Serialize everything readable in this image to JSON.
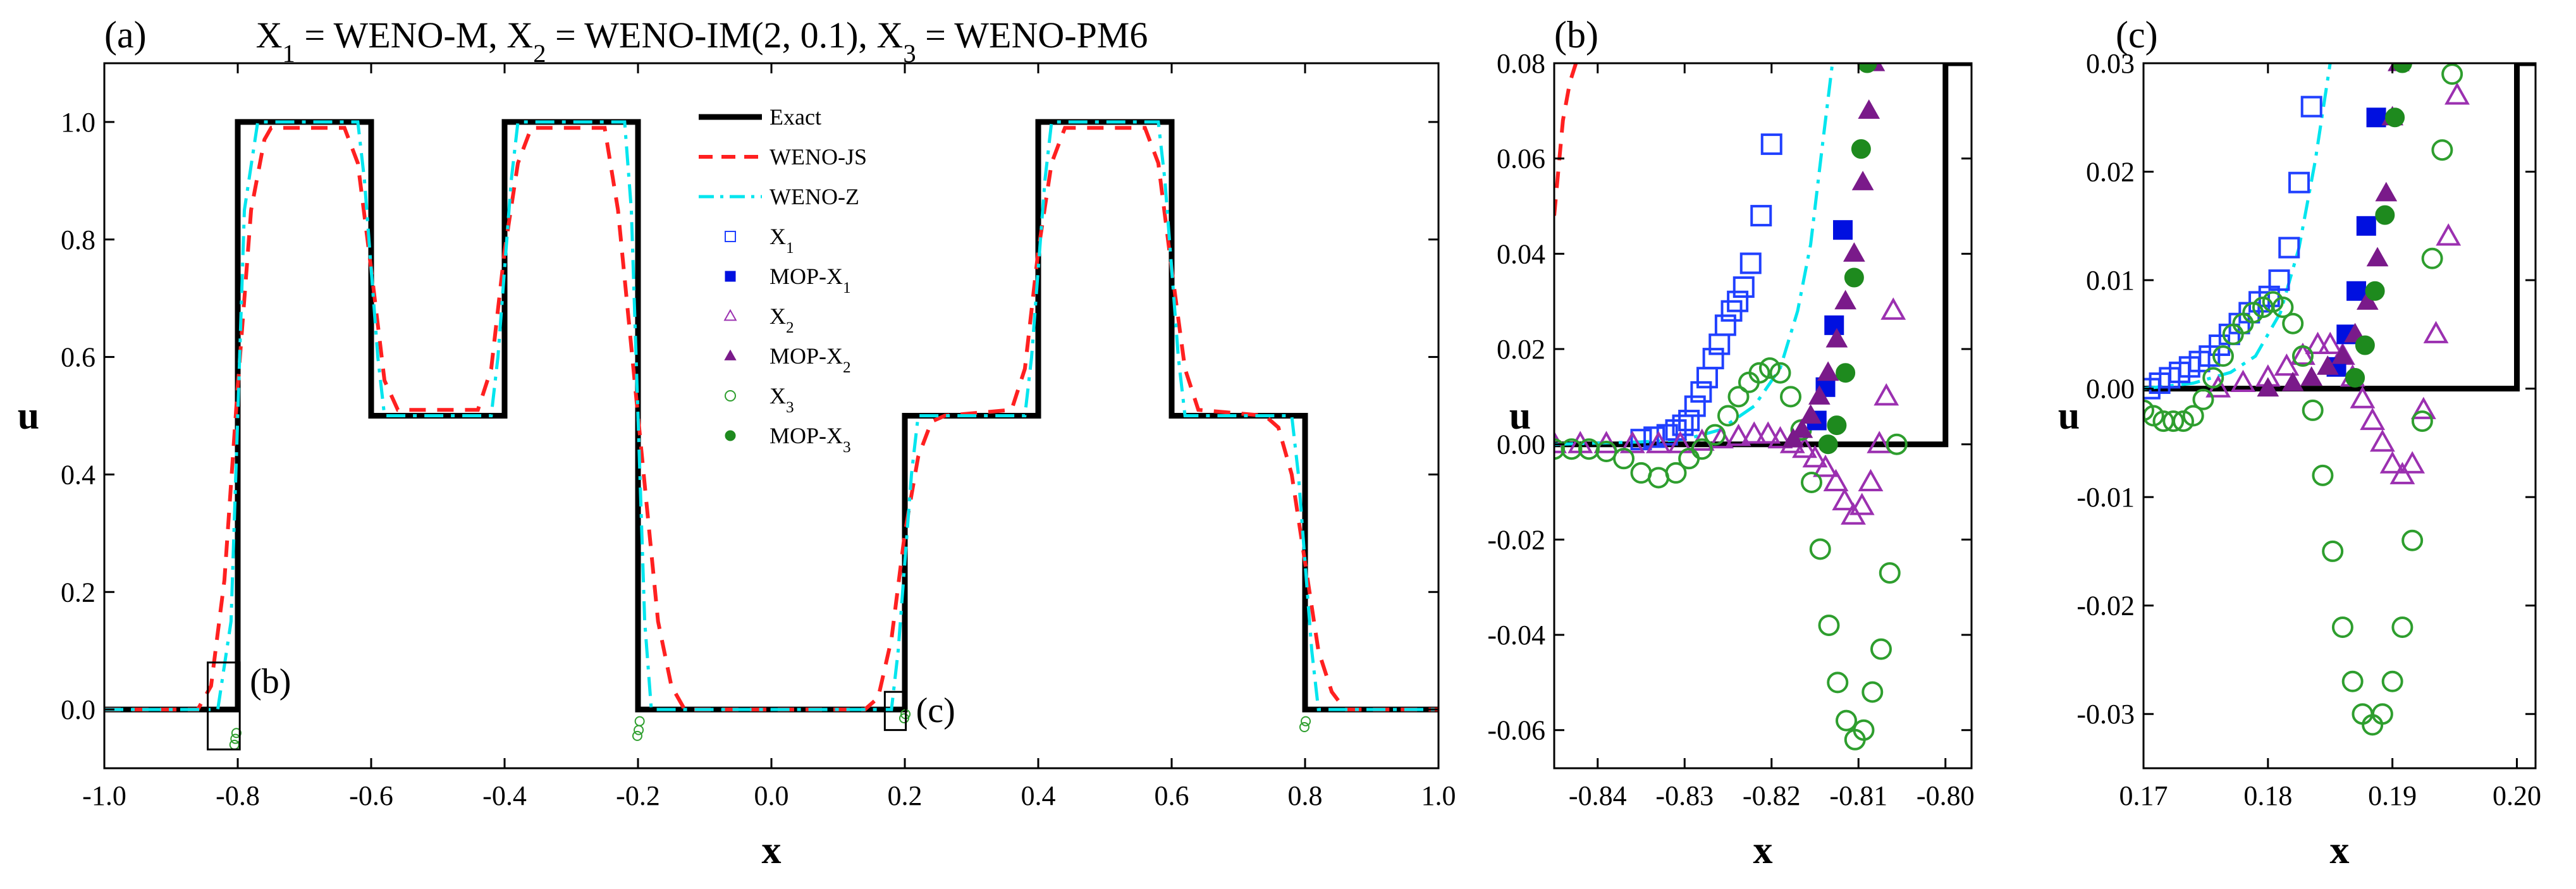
{
  "figure": {
    "title_parts": [
      "X",
      "1",
      " = WENO-M, X",
      "2",
      " = WENO-IM(2, 0.1), X",
      "3",
      " = WENO-PM6"
    ],
    "colors": {
      "exact": "#000000",
      "weno_js": "#ff2020",
      "weno_z": "#00e5ee",
      "x1": "#2040ff",
      "mop_x1": "#0010e0",
      "x2": "#9b30b0",
      "mop_x2": "#7a1a8a",
      "x3": "#2e9e2e",
      "mop_x3": "#1e8a1e"
    },
    "legend": {
      "exact": "Exact",
      "weno_js": "WENO-JS",
      "weno_z": "WENO-Z",
      "x1": [
        "X",
        "1"
      ],
      "mop_x1": [
        "MOP-X",
        "1"
      ],
      "x2": [
        "X",
        "2"
      ],
      "mop_x2": [
        "MOP-X",
        "2"
      ],
      "x3": [
        "X",
        "3"
      ],
      "mop_x3": [
        "MOP-X",
        "3"
      ]
    },
    "zoom_boxes": {
      "b": {
        "label": "(b)",
        "xlim": [
          -0.845,
          -0.797
        ],
        "ylim": [
          -0.068,
          0.08
        ]
      },
      "c": {
        "label": "(c)",
        "xlim": [
          0.17,
          0.2015
        ],
        "ylim": [
          -0.035,
          0.03
        ]
      }
    }
  },
  "chart_data": [
    {
      "type": "line",
      "panel": "(a)",
      "xlabel": "x",
      "ylabel": "u",
      "xlim": [
        -1.0,
        1.0
      ],
      "ylim": [
        -0.1,
        1.1
      ],
      "xticks": [
        -1.0,
        -0.8,
        -0.6,
        -0.4,
        -0.2,
        0.0,
        0.2,
        0.4,
        0.6,
        0.8,
        1.0
      ],
      "xtick_labels": [
        "-1.0",
        "-0.8",
        "-0.6",
        "-0.4",
        "-0.2",
        "0.0",
        "0.2",
        "0.4",
        "0.6",
        "0.8",
        "1.0"
      ],
      "yticks": [
        0.0,
        0.2,
        0.4,
        0.6,
        0.8,
        1.0
      ],
      "ytick_labels": [
        "0.0",
        "0.2",
        "0.4",
        "0.6",
        "0.8",
        "1.0"
      ],
      "legend_position": "top-center",
      "series": [
        {
          "name": "Exact",
          "style": "solid",
          "x": [
            -1.0,
            -0.8,
            -0.8,
            -0.6,
            -0.6,
            -0.4,
            -0.4,
            -0.2,
            -0.2,
            0.2,
            0.2,
            0.4,
            0.4,
            0.6,
            0.6,
            0.8,
            0.8,
            1.0
          ],
          "y": [
            0.0,
            0.0,
            1.0,
            1.0,
            0.5,
            0.5,
            1.0,
            1.0,
            0.0,
            0.0,
            0.5,
            0.5,
            1.0,
            1.0,
            0.5,
            0.5,
            0.0,
            0.0
          ]
        },
        {
          "name": "WENO-JS",
          "style": "dashed",
          "x": [
            -1.0,
            -0.86,
            -0.84,
            -0.82,
            -0.8,
            -0.78,
            -0.76,
            -0.75,
            -0.64,
            -0.62,
            -0.6,
            -0.58,
            -0.56,
            -0.44,
            -0.42,
            -0.4,
            -0.38,
            -0.36,
            -0.25,
            -0.23,
            -0.2,
            -0.17,
            -0.15,
            -0.13,
            0.14,
            0.16,
            0.18,
            0.2,
            0.22,
            0.24,
            0.26,
            0.36,
            0.38,
            0.4,
            0.42,
            0.44,
            0.56,
            0.58,
            0.6,
            0.62,
            0.64,
            0.74,
            0.76,
            0.78,
            0.8,
            0.82,
            0.84,
            0.86,
            1.0
          ],
          "y": [
            0.0,
            0.0,
            0.04,
            0.22,
            0.55,
            0.85,
            0.97,
            0.99,
            0.99,
            0.93,
            0.75,
            0.56,
            0.51,
            0.51,
            0.58,
            0.78,
            0.93,
            0.99,
            0.99,
            0.85,
            0.5,
            0.15,
            0.04,
            0.0,
            0.0,
            0.02,
            0.12,
            0.3,
            0.43,
            0.49,
            0.5,
            0.51,
            0.58,
            0.78,
            0.93,
            0.99,
            0.99,
            0.93,
            0.75,
            0.58,
            0.51,
            0.5,
            0.48,
            0.4,
            0.25,
            0.1,
            0.03,
            0.0,
            0.0
          ]
        },
        {
          "name": "WENO-Z",
          "style": "dashdot",
          "x": [
            -1.0,
            -0.83,
            -0.81,
            -0.8,
            -0.79,
            -0.77,
            -0.62,
            -0.61,
            -0.6,
            -0.59,
            -0.58,
            -0.42,
            -0.41,
            -0.4,
            -0.39,
            -0.38,
            -0.22,
            -0.21,
            -0.2,
            -0.19,
            -0.18,
            0.18,
            0.19,
            0.2,
            0.21,
            0.22,
            0.38,
            0.39,
            0.4,
            0.41,
            0.42,
            0.58,
            0.59,
            0.6,
            0.61,
            0.62,
            0.78,
            0.79,
            0.8,
            0.81,
            0.82,
            1.0
          ],
          "y": [
            0.0,
            0.0,
            0.15,
            0.5,
            0.85,
            1.0,
            1.0,
            0.9,
            0.75,
            0.6,
            0.5,
            0.5,
            0.6,
            0.75,
            0.9,
            1.0,
            1.0,
            0.85,
            0.5,
            0.15,
            0.0,
            0.0,
            0.1,
            0.25,
            0.4,
            0.5,
            0.5,
            0.6,
            0.75,
            0.9,
            1.0,
            1.0,
            0.9,
            0.75,
            0.6,
            0.5,
            0.5,
            0.4,
            0.25,
            0.1,
            0.0,
            0.0
          ]
        },
        {
          "name": "X1",
          "style": "open-square",
          "x": [],
          "y": []
        },
        {
          "name": "MOP-X1",
          "style": "filled-square",
          "x": [],
          "y": []
        },
        {
          "name": "X2",
          "style": "open-triangle",
          "x": [],
          "y": []
        },
        {
          "name": "MOP-X2",
          "style": "filled-triangle",
          "x": [],
          "y": []
        },
        {
          "name": "X3",
          "style": "open-circle",
          "x": [
            -0.805,
            -0.8035,
            -0.802,
            -0.201,
            -0.199,
            -0.1975,
            0.199,
            0.201,
            0.799,
            0.801
          ],
          "y": [
            -0.06,
            -0.05,
            -0.04,
            -0.045,
            -0.035,
            -0.02,
            -0.015,
            -0.008,
            -0.03,
            -0.02
          ]
        },
        {
          "name": "MOP-X3",
          "style": "filled-circle",
          "x": [],
          "y": []
        }
      ]
    },
    {
      "type": "scatter",
      "panel": "(b)",
      "xlabel": "x",
      "ylabel": "u",
      "xlim": [
        -0.845,
        -0.797
      ],
      "ylim": [
        -0.068,
        0.08
      ],
      "xticks": [
        -0.84,
        -0.83,
        -0.82,
        -0.81,
        -0.8
      ],
      "xtick_labels": [
        "-0.84",
        "-0.83",
        "-0.82",
        "-0.81",
        "-0.80"
      ],
      "yticks": [
        -0.06,
        -0.04,
        -0.02,
        0.0,
        0.02,
        0.04,
        0.06,
        0.08
      ],
      "ytick_labels": [
        "-0.06",
        "-0.04",
        "-0.02",
        "0.00",
        "0.02",
        "0.04",
        "0.06",
        "0.08"
      ],
      "series": [
        {
          "name": "Exact",
          "style": "solid",
          "x": [
            -0.845,
            -0.8,
            -0.8,
            -0.797
          ],
          "y": [
            0.0,
            0.0,
            0.08,
            0.08
          ]
        },
        {
          "name": "WENO-JS",
          "style": "dashed",
          "x": [
            -0.845,
            -0.8445,
            -0.844,
            -0.8432,
            -0.8425
          ],
          "y": [
            0.048,
            0.058,
            0.068,
            0.076,
            0.08
          ]
        },
        {
          "name": "WENO-Z",
          "style": "dashdot",
          "x": [
            -0.845,
            -0.835,
            -0.83,
            -0.826,
            -0.822,
            -0.819,
            -0.817,
            -0.8155,
            -0.8142,
            -0.813
          ],
          "y": [
            0.0,
            0.0005,
            0.001,
            0.003,
            0.008,
            0.016,
            0.028,
            0.042,
            0.062,
            0.08
          ]
        },
        {
          "name": "X1",
          "style": "open-square",
          "x": [
            -0.835,
            -0.8335,
            -0.832,
            -0.831,
            -0.8302,
            -0.8295,
            -0.8288,
            -0.8281,
            -0.8274,
            -0.8267,
            -0.826,
            -0.8253,
            -0.8246,
            -0.8239,
            -0.8232,
            -0.8224,
            -0.8212,
            -0.82
          ],
          "y": [
            0.001,
            0.0015,
            0.002,
            0.003,
            0.004,
            0.005,
            0.008,
            0.011,
            0.014,
            0.018,
            0.021,
            0.025,
            0.028,
            0.03,
            0.033,
            0.038,
            0.048,
            0.063
          ]
        },
        {
          "name": "MOP-X1",
          "style": "filled-square",
          "x": [
            -0.8148,
            -0.8138,
            -0.8128,
            -0.8118
          ],
          "y": [
            0.005,
            0.012,
            0.025,
            0.045
          ]
        },
        {
          "name": "X2",
          "style": "open-triangle",
          "x": [
            -0.845,
            -0.842,
            -0.839,
            -0.836,
            -0.833,
            -0.8305,
            -0.828,
            -0.8258,
            -0.8238,
            -0.822,
            -0.8204,
            -0.819,
            -0.8176,
            -0.8162,
            -0.815,
            -0.8138,
            -0.8126,
            -0.8116,
            -0.8106,
            -0.8096,
            -0.8086,
            -0.8076,
            -0.8068,
            -0.806
          ],
          "y": [
            0.0,
            0.0,
            0.0,
            0.0,
            0.0,
            0.0,
            0.0005,
            0.001,
            0.0015,
            0.002,
            0.002,
            0.001,
            0.0,
            -0.001,
            -0.003,
            -0.005,
            -0.008,
            -0.012,
            -0.015,
            -0.013,
            -0.008,
            0.0,
            0.01,
            0.028
          ]
        },
        {
          "name": "MOP-X2",
          "style": "filled-triangle",
          "x": [
            -0.8175,
            -0.8165,
            -0.8155,
            -0.8145,
            -0.8135,
            -0.8125,
            -0.8115,
            -0.8105,
            -0.8095,
            -0.8088,
            -0.8082
          ],
          "y": [
            0.001,
            0.003,
            0.006,
            0.01,
            0.015,
            0.022,
            0.03,
            0.04,
            0.055,
            0.07,
            0.08
          ]
        },
        {
          "name": "X3",
          "style": "open-circle",
          "x": [
            -0.845,
            -0.843,
            -0.841,
            -0.839,
            -0.837,
            -0.835,
            -0.833,
            -0.831,
            -0.8295,
            -0.828,
            -0.8265,
            -0.825,
            -0.8238,
            -0.8226,
            -0.8214,
            -0.8202,
            -0.819,
            -0.8178,
            -0.8166,
            -0.8154,
            -0.8144,
            -0.8134,
            -0.8124,
            -0.8114,
            -0.8104,
            -0.8094,
            -0.8084,
            -0.8074,
            -0.8064,
            -0.8056
          ],
          "y": [
            -0.001,
            -0.001,
            -0.001,
            -0.0015,
            -0.003,
            -0.006,
            -0.007,
            -0.006,
            -0.003,
            -0.001,
            0.002,
            0.006,
            0.01,
            0.013,
            0.015,
            0.016,
            0.015,
            0.01,
            0.003,
            -0.008,
            -0.022,
            -0.038,
            -0.05,
            -0.058,
            -0.062,
            -0.06,
            -0.052,
            -0.043,
            -0.027,
            0.0
          ]
        },
        {
          "name": "MOP-X3",
          "style": "filled-circle",
          "x": [
            -0.8135,
            -0.8125,
            -0.8115,
            -0.8105,
            -0.8097,
            -0.809
          ],
          "y": [
            0.0,
            0.004,
            0.015,
            0.035,
            0.062,
            0.08
          ]
        }
      ]
    },
    {
      "type": "scatter",
      "panel": "(c)",
      "xlabel": "x",
      "ylabel": "u",
      "xlim": [
        0.17,
        0.2015
      ],
      "ylim": [
        -0.035,
        0.03
      ],
      "xticks": [
        0.17,
        0.18,
        0.19,
        0.2
      ],
      "xtick_labels": [
        "0.17",
        "0.18",
        "0.19",
        "0.20"
      ],
      "yticks": [
        -0.03,
        -0.02,
        -0.01,
        0.0,
        0.01,
        0.02,
        0.03
      ],
      "ytick_labels": [
        "-0.03",
        "-0.02",
        "-0.01",
        "0.00",
        "0.01",
        "0.02",
        "0.03"
      ],
      "series": [
        {
          "name": "Exact",
          "style": "solid",
          "x": [
            0.17,
            0.2,
            0.2,
            0.2015
          ],
          "y": [
            0.0,
            0.0,
            0.03,
            0.03
          ]
        },
        {
          "name": "WENO-JS",
          "style": "dashed",
          "x": [],
          "y": []
        },
        {
          "name": "WENO-Z",
          "style": "dashdot",
          "x": [
            0.17,
            0.174,
            0.177,
            0.179,
            0.181,
            0.1825,
            0.1838,
            0.185
          ],
          "y": [
            0.0,
            0.0005,
            0.0015,
            0.003,
            0.007,
            0.013,
            0.021,
            0.03
          ]
        },
        {
          "name": "X1",
          "style": "open-square",
          "x": [
            0.1705,
            0.1713,
            0.1721,
            0.1729,
            0.1737,
            0.1745,
            0.1753,
            0.1761,
            0.1769,
            0.1777,
            0.1785,
            0.1793,
            0.1801,
            0.1809,
            0.1817,
            0.1825,
            0.1835
          ],
          "y": [
            0.0,
            0.0005,
            0.001,
            0.0015,
            0.002,
            0.0025,
            0.003,
            0.004,
            0.005,
            0.006,
            0.007,
            0.008,
            0.0085,
            0.01,
            0.013,
            0.019,
            0.026
          ]
        },
        {
          "name": "MOP-X1",
          "style": "filled-square",
          "x": [
            0.1855,
            0.1863,
            0.1871,
            0.1879,
            0.1887
          ],
          "y": [
            0.002,
            0.005,
            0.009,
            0.015,
            0.025
          ]
        },
        {
          "name": "X2",
          "style": "open-triangle",
          "x": [
            0.176,
            0.178,
            0.18,
            0.1815,
            0.1828,
            0.184,
            0.185,
            0.186,
            0.1868,
            0.1876,
            0.1884,
            0.1892,
            0.19,
            0.1908,
            0.1916,
            0.1925,
            0.1935,
            0.1945,
            0.1952
          ],
          "y": [
            0.0,
            0.0005,
            0.001,
            0.002,
            0.003,
            0.004,
            0.004,
            0.003,
            0.001,
            -0.001,
            -0.003,
            -0.005,
            -0.007,
            -0.008,
            -0.007,
            -0.002,
            0.005,
            0.014,
            0.027
          ]
        },
        {
          "name": "MOP-X2",
          "style": "filled-triangle",
          "x": [
            0.18,
            0.182,
            0.1835,
            0.1848,
            0.186,
            0.187,
            0.188,
            0.1888,
            0.1895,
            0.19,
            0.1905
          ],
          "y": [
            0.0,
            0.0005,
            0.001,
            0.002,
            0.003,
            0.005,
            0.008,
            0.012,
            0.018,
            0.025,
            0.03
          ]
        },
        {
          "name": "X3",
          "style": "open-circle",
          "x": [
            0.17,
            0.1708,
            0.1716,
            0.1724,
            0.1732,
            0.174,
            0.1748,
            0.1756,
            0.1764,
            0.1772,
            0.178,
            0.1788,
            0.1796,
            0.1804,
            0.1812,
            0.182,
            0.1828,
            0.1836,
            0.1844,
            0.1852,
            0.186,
            0.1868,
            0.1876,
            0.1884,
            0.1892,
            0.19,
            0.1908,
            0.1916,
            0.1924,
            0.1932,
            0.194,
            0.1948
          ],
          "y": [
            -0.002,
            -0.0025,
            -0.003,
            -0.003,
            -0.003,
            -0.0025,
            -0.001,
            0.001,
            0.003,
            0.005,
            0.006,
            0.007,
            0.0075,
            0.008,
            0.0075,
            0.006,
            0.003,
            -0.002,
            -0.008,
            -0.015,
            -0.022,
            -0.027,
            -0.03,
            -0.031,
            -0.03,
            -0.027,
            -0.022,
            -0.014,
            -0.003,
            0.012,
            0.022,
            0.029
          ]
        },
        {
          "name": "MOP-X3",
          "style": "filled-circle",
          "x": [
            0.187,
            0.1878,
            0.1886,
            0.1894,
            0.1902,
            0.1908
          ],
          "y": [
            0.001,
            0.004,
            0.009,
            0.016,
            0.025,
            0.03
          ]
        }
      ]
    }
  ]
}
